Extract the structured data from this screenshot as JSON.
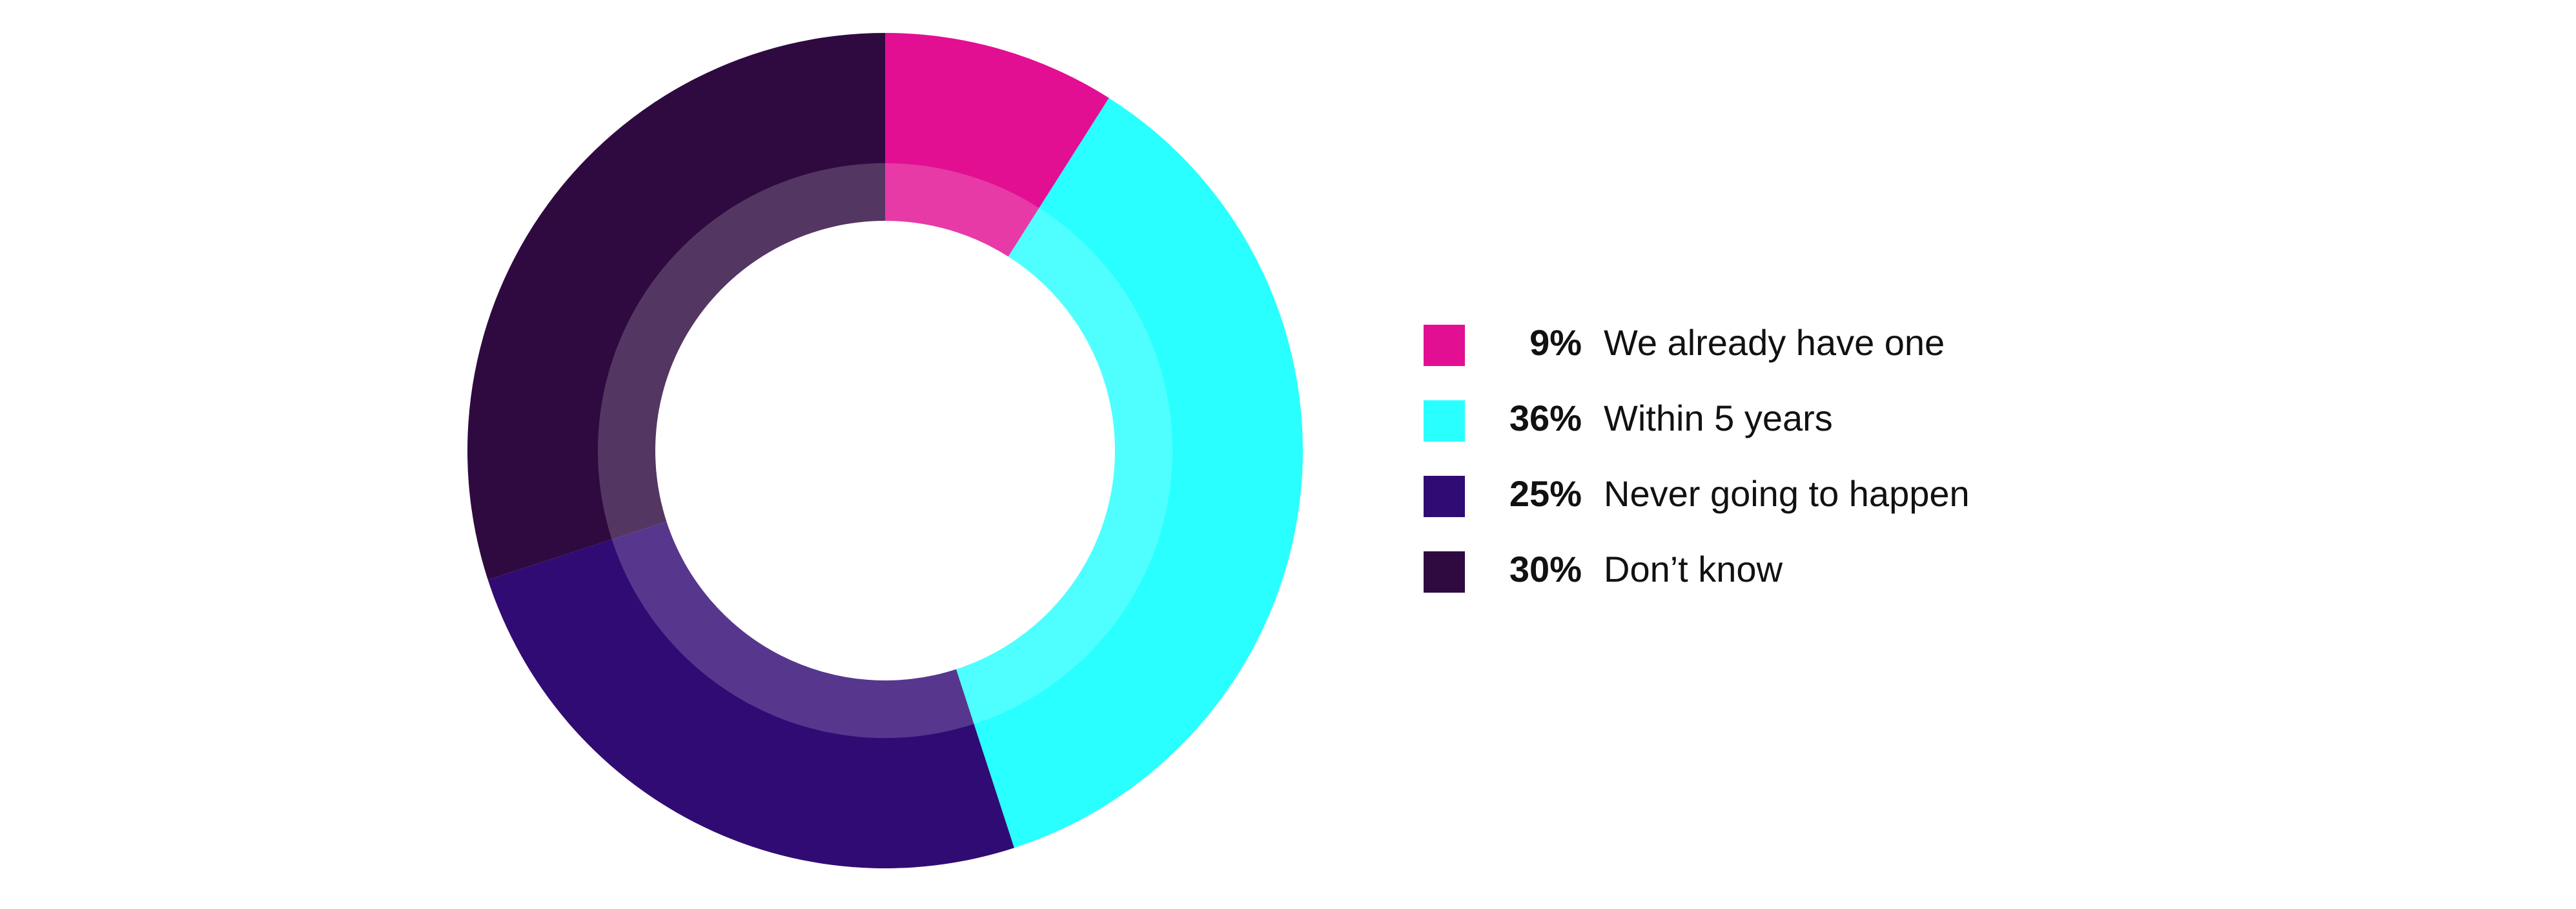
{
  "chart_data": {
    "type": "donut",
    "categories": [
      "We already have one",
      "Within 5 years",
      "Never going to happen",
      "Don’t know"
    ],
    "values": [
      9,
      36,
      25,
      30
    ],
    "value_labels": [
      "9%",
      "36%",
      "25%",
      "30%"
    ],
    "colors": [
      "#e20f93",
      "#29ffff",
      "#310b74",
      "#2f0a40"
    ]
  }
}
